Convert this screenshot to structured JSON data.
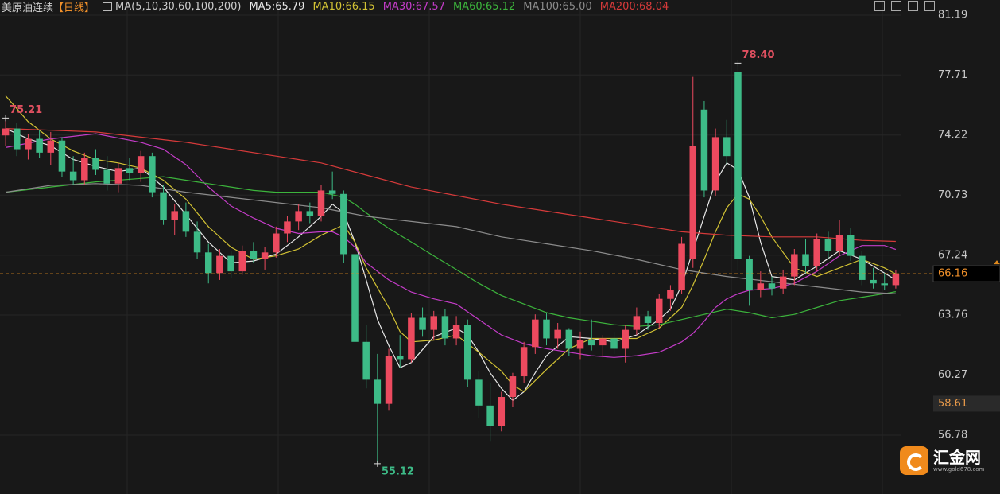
{
  "chart_data": {
    "type": "candlestick",
    "title": "美原油连续",
    "period": "【日线】",
    "indicator": "MA(5,10,30,60,100,200)",
    "up_color": "#ec4a5f",
    "down_color": "#3dbb87",
    "ylim": [
      53.36,
      82.07
    ],
    "yticks": [
      81.19,
      77.71,
      74.22,
      70.73,
      67.24,
      63.76,
      60.27,
      56.78
    ],
    "grid": true,
    "last_price": 66.16,
    "marker_price": 58.61,
    "annotations": [
      {
        "value": 75.21,
        "label": "75.21",
        "kind": "high",
        "color": "#e05060"
      },
      {
        "value": 78.4,
        "label": "78.40",
        "kind": "high",
        "color": "#e05060"
      },
      {
        "value": 55.12,
        "label": "55.12",
        "kind": "low",
        "color": "#3dbb87"
      }
    ],
    "ohlc": [
      [
        74.2,
        75.21,
        73.6,
        74.6
      ],
      [
        74.6,
        74.9,
        73.0,
        73.4
      ],
      [
        73.4,
        74.3,
        72.8,
        74.0
      ],
      [
        74.0,
        74.5,
        72.9,
        73.2
      ],
      [
        73.2,
        74.4,
        72.5,
        73.9
      ],
      [
        73.9,
        74.1,
        71.8,
        72.1
      ],
      [
        72.1,
        73.0,
        71.3,
        71.6
      ],
      [
        71.6,
        73.2,
        71.3,
        72.9
      ],
      [
        72.9,
        73.4,
        71.9,
        72.2
      ],
      [
        72.2,
        73.0,
        71.0,
        71.4
      ],
      [
        71.4,
        72.6,
        70.9,
        72.3
      ],
      [
        72.3,
        72.9,
        71.6,
        72.0
      ],
      [
        72.0,
        73.3,
        71.5,
        73.0
      ],
      [
        73.0,
        73.2,
        70.6,
        70.9
      ],
      [
        70.9,
        71.3,
        69.0,
        69.3
      ],
      [
        69.3,
        70.2,
        68.4,
        69.8
      ],
      [
        69.8,
        70.3,
        68.3,
        68.6
      ],
      [
        68.6,
        69.2,
        67.0,
        67.4
      ],
      [
        67.4,
        67.9,
        65.6,
        66.2
      ],
      [
        66.2,
        67.6,
        65.8,
        67.2
      ],
      [
        67.2,
        67.5,
        65.9,
        66.3
      ],
      [
        66.3,
        67.8,
        66.1,
        67.5
      ],
      [
        67.5,
        68.0,
        66.8,
        67.0
      ],
      [
        67.0,
        67.7,
        66.4,
        67.4
      ],
      [
        67.4,
        68.9,
        67.1,
        68.5
      ],
      [
        68.5,
        69.5,
        68.0,
        69.2
      ],
      [
        69.2,
        70.2,
        68.7,
        69.8
      ],
      [
        69.8,
        70.3,
        69.1,
        69.5
      ],
      [
        69.5,
        71.3,
        69.2,
        71.0
      ],
      [
        71.0,
        72.1,
        70.5,
        70.8
      ],
      [
        70.8,
        71.0,
        66.8,
        67.3
      ],
      [
        67.3,
        67.6,
        61.8,
        62.2
      ],
      [
        62.2,
        63.2,
        59.5,
        60.0
      ],
      [
        60.0,
        61.5,
        55.12,
        58.6
      ],
      [
        58.6,
        61.8,
        58.2,
        61.4
      ],
      [
        61.4,
        62.6,
        60.7,
        61.2
      ],
      [
        61.2,
        63.9,
        61.0,
        63.6
      ],
      [
        63.6,
        64.2,
        62.5,
        62.9
      ],
      [
        62.9,
        64.0,
        62.3,
        63.7
      ],
      [
        63.7,
        64.1,
        62.0,
        62.4
      ],
      [
        62.4,
        63.7,
        62.0,
        63.2
      ],
      [
        63.2,
        63.5,
        59.6,
        60.0
      ],
      [
        60.0,
        60.5,
        57.8,
        58.5
      ],
      [
        58.5,
        59.8,
        56.4,
        57.3
      ],
      [
        57.3,
        59.3,
        57.0,
        59.0
      ],
      [
        59.0,
        60.4,
        58.4,
        60.2
      ],
      [
        60.2,
        62.2,
        59.8,
        61.9
      ],
      [
        61.9,
        63.8,
        61.5,
        63.5
      ],
      [
        63.5,
        63.9,
        62.0,
        62.4
      ],
      [
        62.4,
        63.3,
        61.8,
        62.9
      ],
      [
        62.9,
        63.0,
        61.4,
        61.8
      ],
      [
        61.8,
        62.8,
        61.2,
        62.3
      ],
      [
        62.3,
        63.5,
        61.7,
        62.0
      ],
      [
        62.0,
        62.6,
        61.3,
        62.4
      ],
      [
        62.4,
        62.8,
        61.5,
        61.8
      ],
      [
        61.8,
        63.2,
        61.0,
        62.9
      ],
      [
        62.9,
        64.2,
        62.6,
        63.7
      ],
      [
        63.7,
        64.0,
        62.9,
        63.3
      ],
      [
        63.3,
        65.0,
        63.0,
        64.7
      ],
      [
        64.7,
        65.5,
        64.0,
        65.2
      ],
      [
        65.2,
        68.3,
        65.0,
        67.9
      ],
      [
        67.0,
        77.6,
        66.5,
        73.6
      ],
      [
        75.7,
        76.2,
        70.6,
        71.0
      ],
      [
        71.0,
        74.6,
        70.7,
        74.1
      ],
      [
        74.1,
        75.1,
        72.5,
        73.0
      ],
      [
        77.9,
        78.4,
        66.4,
        67.0
      ],
      [
        67.0,
        67.2,
        64.3,
        65.2
      ],
      [
        65.2,
        66.3,
        64.8,
        65.6
      ],
      [
        65.6,
        66.0,
        64.9,
        65.3
      ],
      [
        65.3,
        66.4,
        65.0,
        66.0
      ],
      [
        66.0,
        67.6,
        65.5,
        67.3
      ],
      [
        67.3,
        68.2,
        66.2,
        66.6
      ],
      [
        66.6,
        68.5,
        66.3,
        68.2
      ],
      [
        68.2,
        68.6,
        67.0,
        67.5
      ],
      [
        67.5,
        69.3,
        67.2,
        68.4
      ],
      [
        68.4,
        68.8,
        66.9,
        67.2
      ],
      [
        67.2,
        67.5,
        65.5,
        65.8
      ],
      [
        65.8,
        66.5,
        65.3,
        65.6
      ],
      [
        65.6,
        66.2,
        65.2,
        65.5
      ],
      [
        65.5,
        66.4,
        65.3,
        66.16
      ]
    ],
    "series": [
      {
        "name": "MA5:65.79",
        "color": "#e8e8e8",
        "x": [
          0,
          2,
          4,
          6,
          8,
          10,
          12,
          14,
          16,
          18,
          20,
          22,
          24,
          26,
          28,
          29,
          30,
          31,
          32,
          33,
          34,
          35,
          36,
          38,
          40,
          41,
          42,
          43,
          44,
          45,
          46,
          47,
          48,
          50,
          52,
          54,
          56,
          58,
          59,
          60,
          61,
          62,
          63,
          64,
          65,
          66,
          67,
          68,
          70,
          72,
          74,
          76,
          78,
          79
        ],
        "values": [
          74.6,
          74.0,
          73.6,
          72.8,
          72.4,
          72.1,
          72.3,
          71.2,
          69.6,
          68.0,
          66.8,
          66.9,
          67.3,
          68.3,
          69.5,
          70.2,
          69.7,
          68.0,
          65.8,
          63.5,
          62.0,
          60.7,
          61.0,
          62.5,
          63.0,
          62.6,
          61.6,
          60.4,
          59.5,
          58.8,
          59.3,
          60.4,
          61.4,
          62.5,
          62.4,
          62.2,
          62.6,
          63.5,
          64.1,
          65.5,
          67.5,
          69.5,
          71.5,
          72.6,
          72.2,
          70.6,
          68.0,
          66.0,
          65.8,
          66.6,
          67.5,
          67.0,
          66.2,
          65.8
        ]
      },
      {
        "name": "MA10:66.15",
        "color": "#d2c234",
        "x": [
          0,
          2,
          4,
          6,
          8,
          10,
          12,
          14,
          16,
          18,
          20,
          22,
          24,
          26,
          28,
          30,
          31,
          32,
          34,
          35,
          36,
          38,
          40,
          42,
          44,
          45,
          46,
          48,
          50,
          52,
          54,
          56,
          58,
          60,
          61,
          62,
          63,
          64,
          65,
          66,
          67,
          68,
          70,
          72,
          74,
          76,
          78,
          79
        ],
        "values": [
          76.5,
          75.0,
          74.0,
          73.3,
          72.8,
          72.6,
          72.3,
          71.6,
          70.5,
          68.9,
          67.7,
          67.0,
          67.2,
          67.6,
          68.4,
          69.0,
          68.0,
          66.5,
          64.2,
          62.8,
          62.2,
          62.3,
          62.6,
          61.6,
          60.5,
          59.7,
          59.3,
          60.6,
          61.8,
          62.4,
          62.4,
          62.4,
          63.0,
          64.2,
          65.5,
          67.0,
          68.6,
          70.0,
          70.8,
          70.5,
          69.5,
          68.3,
          66.5,
          66.0,
          66.5,
          67.0,
          66.5,
          66.15
        ]
      },
      {
        "name": "MA30:67.57",
        "color": "#c43cc8",
        "x": [
          0,
          4,
          8,
          12,
          14,
          16,
          18,
          20,
          22,
          24,
          26,
          28,
          29,
          30,
          31,
          32,
          34,
          36,
          38,
          40,
          42,
          44,
          46,
          48,
          50,
          52,
          54,
          56,
          58,
          60,
          61,
          62,
          63,
          64,
          65,
          66,
          68,
          70,
          72,
          74,
          76,
          78,
          79
        ],
        "values": [
          73.5,
          74.0,
          74.3,
          73.8,
          73.4,
          72.5,
          71.2,
          70.1,
          69.4,
          68.8,
          68.5,
          68.6,
          68.6,
          68.3,
          67.7,
          66.8,
          65.8,
          65.1,
          64.7,
          64.4,
          63.5,
          62.6,
          62.1,
          61.8,
          61.6,
          61.4,
          61.3,
          61.4,
          61.6,
          62.2,
          62.7,
          63.4,
          64.2,
          64.7,
          65.0,
          65.2,
          65.3,
          65.6,
          66.3,
          67.2,
          67.8,
          67.8,
          67.57
        ]
      },
      {
        "name": "MA60:65.12",
        "color": "#3cb43c",
        "x": [
          0,
          4,
          8,
          12,
          14,
          16,
          18,
          20,
          22,
          24,
          26,
          28,
          30,
          31,
          32,
          34,
          36,
          38,
          40,
          42,
          44,
          46,
          48,
          50,
          52,
          54,
          56,
          58,
          60,
          62,
          64,
          66,
          68,
          70,
          72,
          74,
          76,
          78,
          79
        ],
        "values": [
          70.9,
          71.2,
          71.5,
          71.7,
          71.8,
          71.6,
          71.4,
          71.2,
          71.0,
          70.9,
          70.9,
          70.9,
          70.6,
          70.2,
          69.7,
          68.8,
          68.0,
          67.2,
          66.4,
          65.6,
          64.9,
          64.4,
          63.9,
          63.6,
          63.4,
          63.2,
          63.1,
          63.2,
          63.5,
          63.8,
          64.1,
          63.9,
          63.6,
          63.8,
          64.2,
          64.6,
          64.8,
          65.0,
          65.12
        ]
      },
      {
        "name": "MA100:65.00",
        "color": "#8c8c8c",
        "x": [
          0,
          4,
          8,
          12,
          16,
          20,
          24,
          28,
          32,
          36,
          40,
          44,
          48,
          52,
          56,
          60,
          64,
          68,
          72,
          76,
          79
        ],
        "values": [
          70.9,
          71.3,
          71.4,
          71.3,
          70.9,
          70.6,
          70.3,
          70.0,
          69.5,
          69.2,
          68.9,
          68.3,
          67.9,
          67.5,
          67.0,
          66.4,
          66.0,
          65.7,
          65.4,
          65.1,
          65.0
        ]
      },
      {
        "name": "MA200:68.04",
        "color": "#d63a3a",
        "x": [
          0,
          4,
          8,
          12,
          16,
          20,
          24,
          28,
          32,
          36,
          40,
          44,
          48,
          52,
          56,
          60,
          64,
          68,
          72,
          76,
          79
        ],
        "values": [
          74.6,
          74.5,
          74.4,
          74.1,
          73.8,
          73.4,
          73.0,
          72.6,
          71.9,
          71.2,
          70.7,
          70.2,
          69.8,
          69.4,
          69.0,
          68.6,
          68.4,
          68.3,
          68.3,
          68.1,
          68.04
        ]
      }
    ]
  },
  "watermark": {
    "brand": "汇金网",
    "site": "www.gold678.com"
  }
}
